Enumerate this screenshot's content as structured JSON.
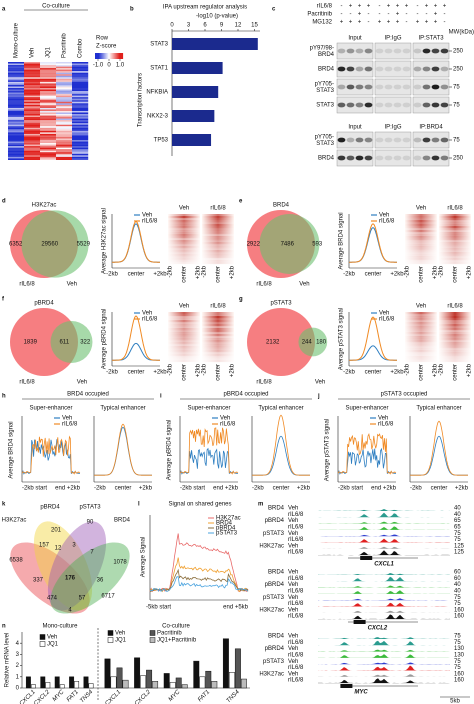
{
  "a": {
    "label": "a",
    "group": "Co-culture",
    "columns": [
      "Mono-culture",
      "Veh",
      "JQ1",
      "Pacritinib",
      "Combo"
    ],
    "legend_title": [
      "Row",
      "Z-score"
    ],
    "legend_ticks": [
      {
        "value": -1,
        "label": "-1.0"
      },
      0,
      {
        "value": 1,
        "label": "1.0"
      }
    ],
    "colors": [
      "#1f2fd0",
      "#ffffff",
      "#e0201c"
    ]
  },
  "b": {
    "label": "b",
    "title": "IPA upstream regulator analysis",
    "xlabel": "-log10 (p-value)",
    "ylabel": "Transcription factors",
    "categories": [
      "STAT3",
      "STAT1",
      "NFKBIA",
      "NKX2-3",
      "TP53"
    ],
    "values": [
      15.6,
      9.2,
      8.4,
      7.7,
      7.1
    ],
    "xlim": [
      0,
      16
    ],
    "xticks": [
      0,
      3,
      6,
      9,
      12,
      15
    ],
    "color": "#1b2a8e",
    "highlight_color": "#e02020"
  },
  "c": {
    "label": "c",
    "treatments": [
      {
        "name": "rIL6/8",
        "signs": [
          "-",
          "+",
          "+",
          "+",
          "-",
          "+",
          "+",
          "+",
          "-",
          "+",
          "+",
          "+"
        ]
      },
      {
        "name": "Pacritinib",
        "signs": [
          "-",
          "-",
          "+",
          "-",
          "-",
          "-",
          "+",
          "-",
          "-",
          "-",
          "+",
          "-"
        ]
      },
      {
        "name": "MG132",
        "signs": [
          "+",
          "+",
          "+",
          "-",
          "+",
          "+",
          "+",
          "-",
          "+",
          "+",
          "+",
          "-"
        ]
      }
    ],
    "mw": "MW(kDa)",
    "blots": [
      {
        "sections": [
          "Input",
          "IP:IgG",
          "IP:STAT3"
        ],
        "rows": [
          {
            "name": [
              "pY97/98-",
              "BRD4"
            ],
            "mw": 250
          },
          {
            "name": [
              "BRD4"
            ],
            "mw": 250
          },
          {
            "name": [
              "pY705-",
              "STAT3"
            ],
            "mw": 75
          },
          {
            "name": [
              "STAT3"
            ],
            "mw": 75
          }
        ]
      },
      {
        "sections": [
          "Input",
          "IP:IgG",
          "IP:BRD4"
        ],
        "rows": [
          {
            "name": [
              "pY705-",
              "STAT3"
            ],
            "mw": 75
          },
          {
            "name": [
              "BRD4"
            ],
            "mw": 250
          }
        ]
      }
    ]
  },
  "profiles": [
    {
      "label": "d",
      "mark": "H3K27ac",
      "venn": [
        6352,
        29560,
        5529
      ],
      "sets": [
        "rIL6/8",
        "Veh"
      ],
      "set_colors": [
        "#f4676b",
        "#6cc070"
      ],
      "ylabel": "Average H3K27ac signal",
      "legend": [
        {
          "name": "Veh",
          "color": "#2f7fc1"
        },
        {
          "name": "rIL6/8",
          "color": "#f08a24"
        }
      ],
      "xticks": [
        "-2kb",
        "center",
        "+2kb"
      ],
      "heatmap": [
        "Veh",
        "rIL6/8"
      ],
      "heatmap_xticks": [
        "-2kb",
        "center",
        "+2kb"
      ]
    },
    {
      "label": "e",
      "mark": "BRD4",
      "venn": [
        2922,
        7486,
        593
      ],
      "sets": [
        "rIL6/8",
        "Veh"
      ],
      "set_colors": [
        "#f4676b",
        "#6cc070"
      ],
      "ylabel": "Average BRD4 signal",
      "legend": [
        {
          "name": "Veh",
          "color": "#2f7fc1"
        },
        {
          "name": "rIL6/8",
          "color": "#f08a24"
        }
      ],
      "xticks": [
        "-2kb",
        "center",
        "+2kb"
      ],
      "heatmap": [
        "Veh",
        "rIL6/8"
      ],
      "heatmap_xticks": [
        "-2kb",
        "center",
        "+2kb"
      ]
    },
    {
      "label": "f",
      "mark": "pBRD4",
      "venn": [
        1839,
        611,
        322
      ],
      "sets": [
        "rIL6/8",
        "Veh"
      ],
      "set_colors": [
        "#f4676b",
        "#6cc070"
      ],
      "ylabel": "Average pBRD4 signal",
      "legend": [
        {
          "name": "Veh",
          "color": "#2f7fc1"
        },
        {
          "name": "rIL6/8",
          "color": "#f08a24"
        }
      ],
      "xticks": [
        "-2kb",
        "center",
        "+2kb"
      ],
      "heatmap": [
        "Veh",
        "rIL6/8"
      ],
      "heatmap_xticks": [
        "-2kb",
        "center",
        "+2kb"
      ]
    },
    {
      "label": "g",
      "mark": "pSTAT3",
      "venn": [
        2132,
        244,
        180
      ],
      "sets": [
        "rIL6/8",
        "Veh"
      ],
      "set_colors": [
        "#f4676b",
        "#6cc070"
      ],
      "ylabel": "Average pSTAT3 signal",
      "legend": [
        {
          "name": "Veh",
          "color": "#2f7fc1"
        },
        {
          "name": "rIL6/8",
          "color": "#f08a24"
        }
      ],
      "xticks": [
        "-2kb",
        "center",
        "+2kb"
      ],
      "heatmap": [
        "Veh",
        "rIL6/8"
      ],
      "heatmap_xticks": [
        "-2kb",
        "center",
        "+2kb"
      ]
    }
  ],
  "occupancy": [
    {
      "label": "h",
      "title": "BRD4 occupied",
      "ylabel": "Average BRD4 signal",
      "plots": [
        {
          "name": "Super-enhancer",
          "xticks": [
            "-2kb start",
            "end +2kb"
          ]
        },
        {
          "name": "Typical enhancer",
          "xticks": [
            "-2kb",
            "center",
            "+2kb"
          ]
        }
      ],
      "legend": [
        {
          "name": "Veh",
          "color": "#2f7fc1"
        },
        {
          "name": "rIL6/8",
          "color": "#f08a24"
        }
      ]
    },
    {
      "label": "i",
      "title": "pBRD4 occupied",
      "ylabel": "Average pBRD4 signal",
      "plots": [
        {
          "name": "Super-enhancer",
          "xticks": [
            "-2kb start",
            "end +2kb"
          ]
        },
        {
          "name": "Typical enhancer",
          "xticks": [
            "-2kb",
            "center",
            "+2kb"
          ]
        }
      ],
      "legend": [
        {
          "name": "Veh",
          "color": "#2f7fc1"
        },
        {
          "name": "rIL6/8",
          "color": "#f08a24"
        }
      ]
    },
    {
      "label": "j",
      "title": "pSTAT3 occupied",
      "ylabel": "Average pSTAT3 signal",
      "plots": [
        {
          "name": "Super-enhancer",
          "xticks": [
            "-2kb start",
            "end +2kb"
          ]
        },
        {
          "name": "Typical enhancer",
          "xticks": [
            "-2kb",
            "center",
            "+2kb"
          ]
        }
      ],
      "legend": [
        {
          "name": "Veh",
          "color": "#2f7fc1"
        },
        {
          "name": "rIL6/8",
          "color": "#f08a24"
        }
      ]
    }
  ],
  "k": {
    "label": "k",
    "sets": [
      {
        "name": "H3K27ac",
        "color": "#e8434a"
      },
      {
        "name": "pBRD4",
        "color": "#f2d43c"
      },
      {
        "name": "pSTAT3",
        "color": "#9b59b6"
      },
      {
        "name": "BRD4",
        "color": "#4cae4f"
      }
    ],
    "counts": [
      6538,
      157,
      201,
      90,
      1078,
      12,
      3,
      7,
      337,
      176,
      36,
      6717,
      474,
      57,
      4
    ],
    "highlight_color": "#e02020"
  },
  "l": {
    "label": "l",
    "title": "Signal on shared genes",
    "ylabel": "Average Signal",
    "series": [
      {
        "name": "H3K27ac",
        "color": "#e86a6a"
      },
      {
        "name": "BRD4",
        "color": "#f0a030"
      },
      {
        "name": "pBRD4",
        "color": "#8a6d3b"
      },
      {
        "name": "pSTAT3",
        "color": "#4aa3df"
      }
    ],
    "xticks": [
      "-5kb start",
      "end +5kb"
    ]
  },
  "m": {
    "label": "m",
    "rows": [
      "Veh",
      "rIL6/8"
    ],
    "marks": [
      {
        "name": "BRD4",
        "colors": [
          "#2b9c8f",
          "#2b9c8f"
        ]
      },
      {
        "name": "pBRD4",
        "colors": [
          "#3cba3c",
          "#3cba3c"
        ]
      },
      {
        "name": "pSTAT3",
        "colors": [
          "#2f3fd0",
          "#e02020"
        ]
      },
      {
        "name": "H3K27ac",
        "colors": [
          "#9a9a9a",
          "#111111"
        ]
      }
    ],
    "genes": [
      {
        "name": "CXCL1",
        "scales": [
          [
            40,
            40
          ],
          [
            65,
            65
          ],
          [
            75,
            75
          ],
          [
            125,
            125
          ]
        ]
      },
      {
        "name": "CXCL2",
        "scales": [
          [
            60,
            60
          ],
          [
            40,
            40
          ],
          [
            75,
            75
          ],
          [
            160,
            160
          ]
        ]
      },
      {
        "name": "MYC",
        "scales": [
          [
            75,
            75
          ],
          [
            130,
            130
          ],
          [
            75,
            75
          ],
          [
            160,
            160
          ]
        ]
      }
    ],
    "scale_bar": "5kb"
  },
  "n": {
    "label": "n",
    "ylabel": "Relative mRNA level",
    "ylim": [
      0,
      5
    ],
    "yticks": [
      0,
      1,
      2,
      3,
      4
    ],
    "groups": [
      {
        "name": "Mono-culture",
        "categories": [
          "CXCL1",
          "CXCL2",
          "MYC",
          "FAT1",
          "TNS4"
        ],
        "series": [
          {
            "name": "Veh",
            "color": "#111111",
            "values": [
              1,
              1,
              1,
              1,
              1
            ]
          },
          {
            "name": "JQ1",
            "color": "#ffffff",
            "values": [
              0.3,
              0.5,
              0.3,
              0.6,
              0.4
            ]
          }
        ]
      },
      {
        "name": "Co-culture",
        "categories": [
          "CXCL1",
          "CXCL2",
          "MYC",
          "FAT1",
          "TNS4"
        ],
        "series": [
          {
            "name": "Veh",
            "color": "#111111",
            "values": [
              2.6,
              2.7,
              1.3,
              2.4,
              4.4
            ]
          },
          {
            "name": "JQ1",
            "color": "#ffffff",
            "values": [
              1.0,
              1.1,
              0.5,
              1.0,
              1.4
            ]
          },
          {
            "name": "Pacritinib",
            "color": "#555555",
            "values": [
              1.8,
              1.6,
              0.9,
              1.5,
              3.5
            ]
          },
          {
            "name": "JQ1+Pacritinib",
            "color": "#bbbbbb",
            "values": [
              0.7,
              0.6,
              0.3,
              0.6,
              0.8
            ]
          }
        ]
      }
    ]
  }
}
